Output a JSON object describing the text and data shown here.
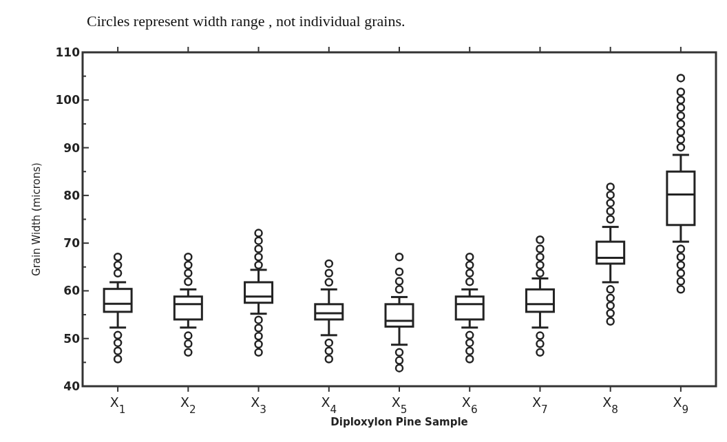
{
  "chart_data": {
    "type": "box",
    "title": "Circles represent width range , not individual grains.",
    "xlabel": "Diploxylon Pine Sample",
    "ylabel": "Grain Width (microns)",
    "categories": [
      "X$_{1}$",
      "X$_{2}$",
      "X$_{3}$",
      "X$_{4}$",
      "X$_{5}$",
      "X$_{6}$",
      "X$_{7}$",
      "X$_{8}$",
      "X$_{9}$"
    ],
    "ylim": [
      40,
      110
    ],
    "yticks": [
      40,
      {
        "value": 45,
        "label": null
      },
      50,
      {
        "value": 55,
        "label": null
      },
      60,
      {
        "value": 65,
        "label": null
      },
      70,
      {
        "value": 75,
        "label": null
      },
      80,
      {
        "value": 85,
        "label": null
      },
      90,
      {
        "value": 95,
        "label": null
      },
      100,
      {
        "value": 105,
        "label": null
      },
      110
    ],
    "grid": false,
    "marker": "circle",
    "boxes": [
      {
        "low": 52.3,
        "q1": 55.6,
        "median": 57.3,
        "q3": 60.4,
        "high": 61.8,
        "outliers": [
          67.1,
          65.4,
          63.7,
          50.7,
          49.1,
          47.4,
          45.7
        ]
      },
      {
        "low": 52.3,
        "q1": 54.0,
        "median": 57.2,
        "q3": 58.8,
        "high": 60.3,
        "outliers": [
          67.1,
          65.4,
          63.7,
          61.9,
          50.6,
          48.9,
          47.1
        ]
      },
      {
        "low": 55.2,
        "q1": 57.5,
        "median": 58.8,
        "q3": 61.8,
        "high": 64.4,
        "outliers": [
          72.1,
          70.5,
          68.8,
          67.1,
          65.4,
          53.9,
          52.2,
          50.5,
          48.8,
          47.1
        ]
      },
      {
        "low": 50.7,
        "q1": 54.0,
        "median": 55.3,
        "q3": 57.2,
        "high": 60.3,
        "outliers": [
          65.7,
          63.7,
          61.8,
          49.1,
          47.4,
          45.7
        ]
      },
      {
        "low": 48.7,
        "q1": 52.5,
        "median": 53.7,
        "q3": 57.2,
        "high": 58.7,
        "outliers": [
          67.1,
          64.0,
          62.0,
          60.3,
          47.1,
          45.4,
          43.8
        ]
      },
      {
        "low": 52.3,
        "q1": 54.0,
        "median": 57.2,
        "q3": 58.8,
        "high": 60.3,
        "outliers": [
          67.1,
          65.4,
          63.7,
          61.9,
          50.7,
          49.1,
          47.4,
          45.7
        ]
      },
      {
        "low": 52.3,
        "q1": 55.6,
        "median": 57.2,
        "q3": 60.3,
        "high": 62.6,
        "outliers": [
          70.7,
          68.8,
          67.1,
          65.4,
          63.7,
          50.6,
          48.9,
          47.1
        ]
      },
      {
        "low": 61.8,
        "q1": 65.7,
        "median": 66.9,
        "q3": 70.3,
        "high": 73.4,
        "outliers": [
          81.8,
          80.1,
          78.4,
          76.7,
          75.0,
          60.3,
          58.5,
          56.9,
          55.3,
          53.6
        ]
      },
      {
        "low": 70.3,
        "q1": 73.8,
        "median": 80.2,
        "q3": 85.0,
        "high": 88.5,
        "outliers": [
          104.6,
          101.7,
          100.0,
          98.4,
          96.7,
          95.0,
          93.3,
          91.7,
          90.1,
          68.8,
          67.1,
          65.4,
          63.7,
          62.0,
          60.3
        ]
      }
    ],
    "color": "#222222"
  }
}
